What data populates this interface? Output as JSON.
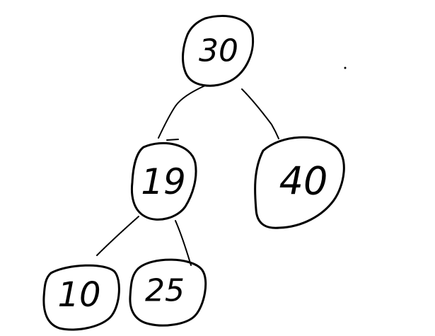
{
  "diagram": {
    "type": "binary-tree",
    "ink_color": "#000000",
    "background_color": "#ffffff",
    "nodes": [
      {
        "id": "n30",
        "label": "30"
      },
      {
        "id": "n19",
        "label": "19"
      },
      {
        "id": "n40",
        "label": "40"
      },
      {
        "id": "n10",
        "label": "10"
      },
      {
        "id": "n25",
        "label": "25"
      }
    ],
    "edges": [
      {
        "from": "n30",
        "to": "n19"
      },
      {
        "from": "n30",
        "to": "n40"
      },
      {
        "from": "n19",
        "to": "n10"
      },
      {
        "from": "n19",
        "to": "n25"
      }
    ]
  }
}
